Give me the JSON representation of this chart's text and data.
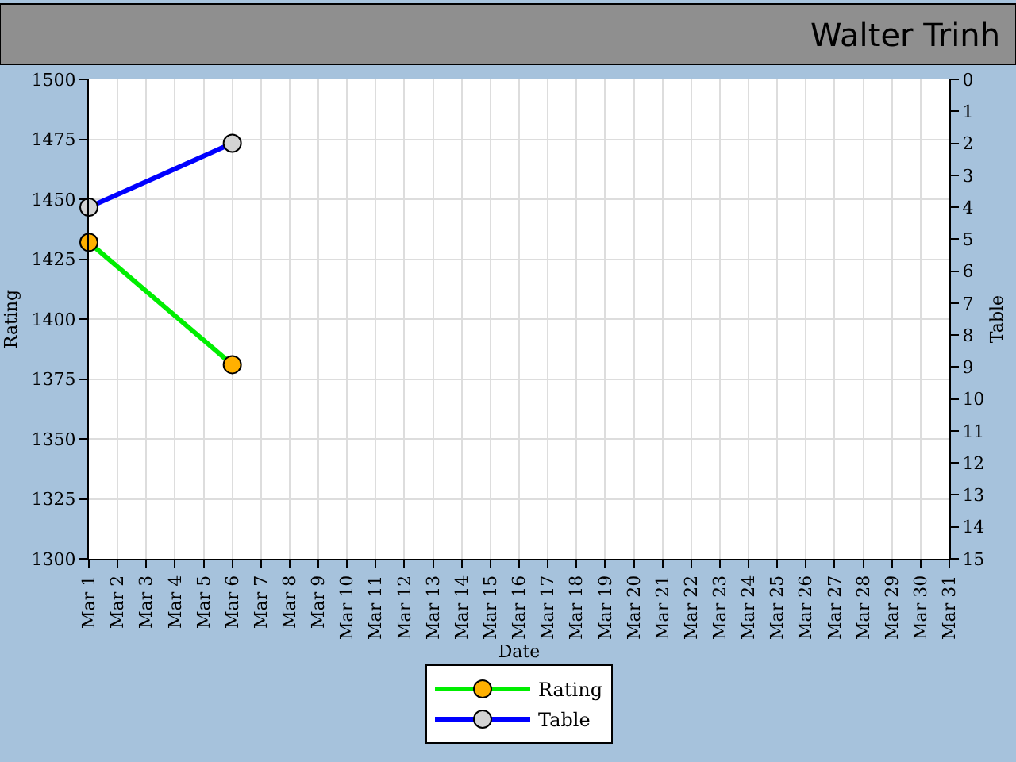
{
  "chart_data": {
    "type": "line",
    "title": "Walter Trinh",
    "xlabel": "Date",
    "ylabel": "Rating",
    "y2label": "Table",
    "x": [
      "--03-01",
      "--03-06"
    ],
    "series": [
      {
        "name": "Rating",
        "color": "#00ee00",
        "colors": [
          "#ffb000",
          "#ffb000"
        ],
        "values": [
          1432,
          1381
        ]
      },
      {
        "name": "Table",
        "color": "#0000ff",
        "colors": [
          "#d3d3d3",
          "#d3d3d3"
        ],
        "values": [
          4,
          2
        ],
        "axis": "y2"
      }
    ],
    "xlim": [
      "--03-01",
      "--03-31"
    ],
    "xticks": [
      {
        "value": "--03-01",
        "label": "Mar 1"
      },
      {
        "value": "--03-02",
        "label": "Mar 2"
      },
      {
        "value": "--03-03",
        "label": "Mar 3"
      },
      {
        "value": "--03-04",
        "label": "Mar 4"
      },
      {
        "value": "--03-05",
        "label": "Mar 5"
      },
      {
        "value": "--03-06",
        "label": "Mar 6"
      },
      {
        "value": "--03-07",
        "label": "Mar 7"
      },
      {
        "value": "--03-08",
        "label": "Mar 8"
      },
      {
        "value": "--03-09",
        "label": "Mar 9"
      },
      {
        "value": "--03-10",
        "label": "Mar 10"
      },
      {
        "value": "--03-11",
        "label": "Mar 11"
      },
      {
        "value": "--03-12",
        "label": "Mar 12"
      },
      {
        "value": "--03-13",
        "label": "Mar 13"
      },
      {
        "value": "--03-14",
        "label": "Mar 14"
      },
      {
        "value": "--03-15",
        "label": "Mar 15"
      },
      {
        "value": "--03-16",
        "label": "Mar 16"
      },
      {
        "value": "--03-17",
        "label": "Mar 17"
      },
      {
        "value": "--03-18",
        "label": "Mar 18"
      },
      {
        "value": "--03-19",
        "label": "Mar 19"
      },
      {
        "value": "--03-20",
        "label": "Mar 20"
      },
      {
        "value": "--03-21",
        "label": "Mar 21"
      },
      {
        "value": "--03-22",
        "label": "Mar 22"
      },
      {
        "value": "--03-23",
        "label": "Mar 23"
      },
      {
        "value": "--03-24",
        "label": "Mar 24"
      },
      {
        "value": "--03-25",
        "label": "Mar 25"
      },
      {
        "value": "--03-26",
        "label": "Mar 26"
      },
      {
        "value": "--03-27",
        "label": "Mar 27"
      },
      {
        "value": "--03-28",
        "label": "Mar 28"
      },
      {
        "value": "--03-29",
        "label": "Mar 29"
      },
      {
        "value": "--03-30",
        "label": "Mar 30"
      },
      {
        "value": "--03-31",
        "label": "Mar 31"
      }
    ],
    "ylim": [
      1300,
      1500
    ],
    "yticks": [
      1300,
      1325,
      1350,
      1375,
      1400,
      1425,
      1450,
      1475,
      1500
    ],
    "y2lim": [
      15,
      0
    ],
    "y2ticks": [
      0,
      1,
      2,
      3,
      4,
      5,
      6,
      7,
      8,
      9,
      10,
      11,
      12,
      13,
      14,
      15
    ],
    "grid": true,
    "legend": "bottom",
    "marker": "circle",
    "line_style": "solid"
  }
}
